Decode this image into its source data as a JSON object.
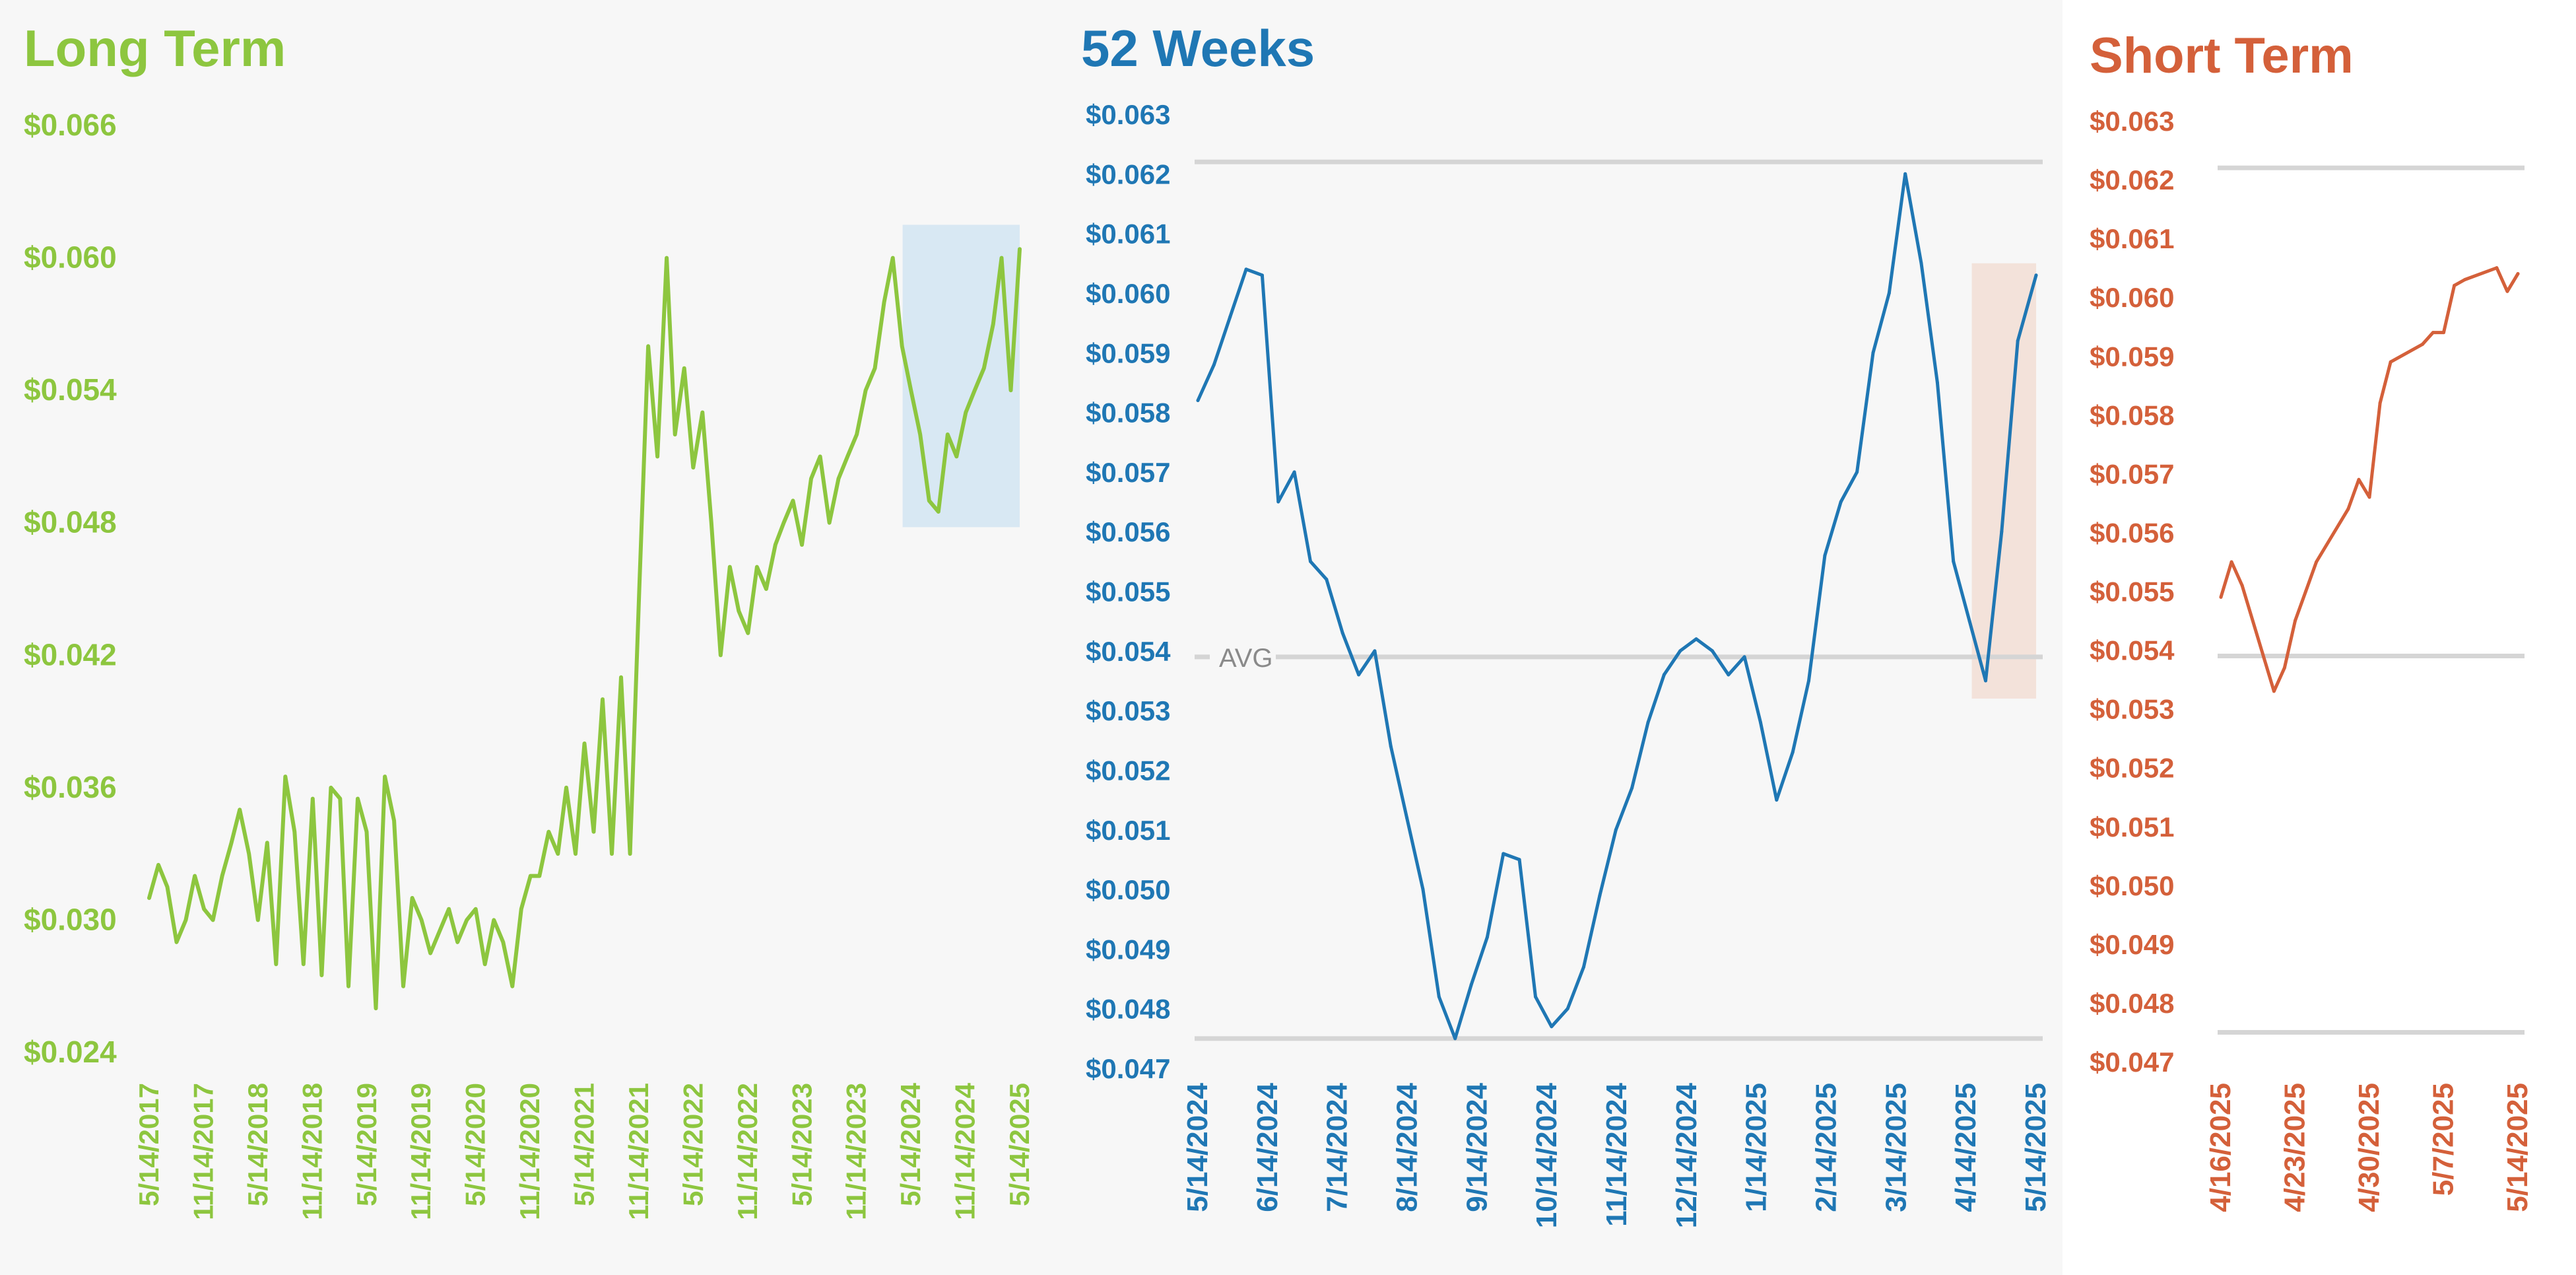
{
  "chart_data": [
    {
      "type": "line",
      "title": "Long Term",
      "color": "#8dc63f",
      "highlight_color": "#d8e8f3",
      "y_ticks": [
        "$0.066",
        "$0.060",
        "$0.054",
        "$0.048",
        "$0.042",
        "$0.036",
        "$0.030",
        "$0.024"
      ],
      "y_tick_values": [
        0.066,
        0.06,
        0.054,
        0.048,
        0.042,
        0.036,
        0.03,
        0.024
      ],
      "ylim": [
        0.024,
        0.066
      ],
      "x_ticks": [
        "5/14/2017",
        "11/14/2017",
        "5/14/2018",
        "11/14/2018",
        "5/14/2019",
        "11/14/2019",
        "5/14/2020",
        "11/14/2020",
        "5/14/2021",
        "11/14/2021",
        "5/14/2022",
        "11/14/2022",
        "5/14/2023",
        "11/14/2023",
        "5/14/2024",
        "11/14/2024",
        "5/14/2025"
      ],
      "xlim": [
        "5/14/2017",
        "5/14/2025"
      ],
      "highlight": {
        "x_from": "4/16/2024",
        "x_to": "5/14/2025",
        "y_from": 0.0478,
        "y_to": 0.0615
      },
      "x": [
        "5/14/2017",
        "6/14/2017",
        "7/14/2017",
        "8/14/2017",
        "9/14/2017",
        "10/14/2017",
        "11/14/2017",
        "12/14/2017",
        "1/14/2018",
        "2/14/2018",
        "3/14/2018",
        "4/14/2018",
        "5/14/2018",
        "6/14/2018",
        "7/14/2018",
        "8/14/2018",
        "9/14/2018",
        "10/14/2018",
        "11/14/2018",
        "12/14/2018",
        "1/14/2019",
        "2/14/2019",
        "3/14/2019",
        "4/14/2019",
        "5/14/2019",
        "6/14/2019",
        "7/14/2019",
        "8/14/2019",
        "9/14/2019",
        "10/14/2019",
        "11/14/2019",
        "12/14/2019",
        "1/14/2020",
        "2/14/2020",
        "3/14/2020",
        "4/14/2020",
        "5/14/2020",
        "6/14/2020",
        "7/14/2020",
        "8/14/2020",
        "9/14/2020",
        "10/14/2020",
        "11/14/2020",
        "12/14/2020",
        "1/14/2021",
        "2/14/2021",
        "3/14/2021",
        "4/14/2021",
        "5/14/2021",
        "6/14/2021",
        "7/14/2021",
        "8/14/2021",
        "9/14/2021",
        "10/14/2021",
        "11/14/2021",
        "12/14/2021",
        "1/14/2022",
        "2/14/2022",
        "3/14/2022",
        "4/14/2022",
        "5/14/2022",
        "6/14/2022",
        "7/14/2022",
        "8/14/2022",
        "9/14/2022",
        "10/14/2022",
        "11/14/2022",
        "12/14/2022",
        "1/14/2023",
        "2/14/2023",
        "3/14/2023",
        "4/14/2023",
        "5/14/2023",
        "6/14/2023",
        "7/14/2023",
        "8/14/2023",
        "9/14/2023",
        "10/14/2023",
        "11/14/2023",
        "12/14/2023",
        "1/14/2024",
        "2/14/2024",
        "3/14/2024",
        "4/14/2024",
        "5/14/2024",
        "6/14/2024",
        "7/14/2024",
        "8/14/2024",
        "9/14/2024",
        "10/14/2024",
        "11/14/2024",
        "12/14/2024",
        "1/14/2025",
        "2/14/2025",
        "3/14/2025",
        "4/14/2025",
        "5/14/2025"
      ],
      "values": [
        0.031,
        0.0325,
        0.0315,
        0.029,
        0.03,
        0.032,
        0.0305,
        0.03,
        0.032,
        0.0335,
        0.035,
        0.033,
        0.03,
        0.0335,
        0.028,
        0.0365,
        0.034,
        0.028,
        0.0355,
        0.0275,
        0.036,
        0.0355,
        0.027,
        0.0355,
        0.034,
        0.026,
        0.0365,
        0.0345,
        0.027,
        0.031,
        0.03,
        0.0285,
        0.0295,
        0.0305,
        0.029,
        0.03,
        0.0305,
        0.028,
        0.03,
        0.029,
        0.027,
        0.0305,
        0.032,
        0.032,
        0.034,
        0.033,
        0.036,
        0.033,
        0.038,
        0.034,
        0.04,
        0.033,
        0.041,
        0.033,
        0.045,
        0.056,
        0.051,
        0.06,
        0.052,
        0.055,
        0.0505,
        0.053,
        0.048,
        0.042,
        0.046,
        0.044,
        0.043,
        0.046,
        0.045,
        0.047,
        0.048,
        0.049,
        0.047,
        0.05,
        0.051,
        0.048,
        0.05,
        0.051,
        0.052,
        0.054,
        0.055,
        0.058,
        0.06,
        0.056,
        0.054,
        0.052,
        0.049,
        0.0485,
        0.052,
        0.051,
        0.053,
        0.054,
        0.055,
        0.057,
        0.06,
        0.054,
        0.0604
      ]
    },
    {
      "type": "line",
      "title": "52 Weeks",
      "color": "#1f77b4",
      "highlight_color": "#f3e2da",
      "y_ticks": [
        "$0.063",
        "$0.062",
        "$0.061",
        "$0.060",
        "$0.059",
        "$0.058",
        "$0.057",
        "$0.056",
        "$0.055",
        "$0.054",
        "$0.053",
        "$0.052",
        "$0.051",
        "$0.050",
        "$0.049",
        "$0.048",
        "$0.047"
      ],
      "y_tick_values": [
        0.063,
        0.062,
        0.061,
        0.06,
        0.059,
        0.058,
        0.057,
        0.056,
        0.055,
        0.054,
        0.053,
        0.052,
        0.051,
        0.05,
        0.049,
        0.048,
        0.047
      ],
      "ylim": [
        0.047,
        0.063
      ],
      "x_ticks": [
        "5/14/2024",
        "6/14/2024",
        "7/14/2024",
        "8/14/2024",
        "9/14/2024",
        "10/14/2024",
        "11/14/2024",
        "12/14/2024",
        "1/14/2025",
        "2/14/2025",
        "3/14/2025",
        "4/14/2025",
        "5/14/2025"
      ],
      "xlim": [
        "5/14/2024",
        "5/14/2025"
      ],
      "reference_lines": [
        {
          "label": "",
          "value": 0.0622
        },
        {
          "label": "AVG",
          "value": 0.0539
        },
        {
          "label": "",
          "value": 0.0475
        }
      ],
      "highlight": {
        "x_from": "4/16/2025",
        "x_to": "5/14/2025",
        "y_from": 0.0532,
        "y_to": 0.0605
      },
      "x": [
        "5/14/2024",
        "5/21/2024",
        "5/28/2024",
        "6/4/2024",
        "6/11/2024",
        "6/18/2024",
        "6/25/2024",
        "7/2/2024",
        "7/9/2024",
        "7/16/2024",
        "7/23/2024",
        "7/30/2024",
        "8/6/2024",
        "8/13/2024",
        "8/20/2024",
        "8/27/2024",
        "9/3/2024",
        "9/10/2024",
        "9/17/2024",
        "9/24/2024",
        "10/1/2024",
        "10/8/2024",
        "10/15/2024",
        "10/22/2024",
        "10/29/2024",
        "11/5/2024",
        "11/12/2024",
        "11/19/2024",
        "11/26/2024",
        "12/3/2024",
        "12/10/2024",
        "12/17/2024",
        "12/24/2024",
        "12/31/2024",
        "1/7/2025",
        "1/14/2025",
        "1/21/2025",
        "1/28/2025",
        "2/4/2025",
        "2/11/2025",
        "2/18/2025",
        "2/25/2025",
        "3/4/2025",
        "3/11/2025",
        "3/18/2025",
        "3/25/2025",
        "4/1/2025",
        "4/8/2025",
        "4/15/2025",
        "4/22/2025",
        "4/29/2025",
        "5/6/2025",
        "5/14/2025"
      ],
      "values": [
        0.0582,
        0.0588,
        0.0596,
        0.0604,
        0.0603,
        0.0565,
        0.057,
        0.0555,
        0.0552,
        0.0543,
        0.0536,
        0.054,
        0.0524,
        0.0512,
        0.05,
        0.0482,
        0.0475,
        0.0484,
        0.0492,
        0.0506,
        0.0505,
        0.0482,
        0.0477,
        0.048,
        0.0487,
        0.0499,
        0.051,
        0.0517,
        0.0528,
        0.0536,
        0.054,
        0.0542,
        0.054,
        0.0536,
        0.0539,
        0.0528,
        0.0515,
        0.0523,
        0.0535,
        0.0556,
        0.0565,
        0.057,
        0.059,
        0.06,
        0.062,
        0.0605,
        0.0585,
        0.0555,
        0.0545,
        0.0535,
        0.056,
        0.0592,
        0.0603
      ]
    },
    {
      "type": "line",
      "title": "Short Term",
      "color": "#d4603a",
      "y_ticks": [
        "$0.063",
        "$0.062",
        "$0.061",
        "$0.060",
        "$0.059",
        "$0.058",
        "$0.057",
        "$0.056",
        "$0.055",
        "$0.054",
        "$0.053",
        "$0.052",
        "$0.051",
        "$0.050",
        "$0.049",
        "$0.048",
        "$0.047"
      ],
      "y_tick_values": [
        0.063,
        0.062,
        0.061,
        0.06,
        0.059,
        0.058,
        0.057,
        0.056,
        0.055,
        0.054,
        0.053,
        0.052,
        0.051,
        0.05,
        0.049,
        0.048,
        0.047
      ],
      "ylim": [
        0.047,
        0.063
      ],
      "x_ticks": [
        "4/16/2025",
        "4/23/2025",
        "4/30/2025",
        "5/7/2025",
        "5/14/2025"
      ],
      "xlim": [
        "4/16/2025",
        "5/14/2025"
      ],
      "reference_lines": [
        {
          "label": "",
          "value": 0.0622
        },
        {
          "label": "",
          "value": 0.0539
        },
        {
          "label": "",
          "value": 0.0475
        }
      ],
      "x": [
        "4/16/2025",
        "4/17/2025",
        "4/18/2025",
        "4/21/2025",
        "4/22/2025",
        "4/23/2025",
        "4/24/2025",
        "4/25/2025",
        "4/28/2025",
        "4/29/2025",
        "4/30/2025",
        "5/1/2025",
        "5/2/2025",
        "5/5/2025",
        "5/6/2025",
        "5/7/2025",
        "5/8/2025",
        "5/9/2025",
        "5/12/2025",
        "5/13/2025",
        "5/14/2025"
      ],
      "values": [
        0.0549,
        0.0555,
        0.0551,
        0.0533,
        0.0537,
        0.0545,
        0.055,
        0.0555,
        0.0564,
        0.0569,
        0.0566,
        0.0582,
        0.0589,
        0.0592,
        0.0594,
        0.0594,
        0.0602,
        0.0603,
        0.0605,
        0.0601,
        0.0604
      ]
    }
  ]
}
